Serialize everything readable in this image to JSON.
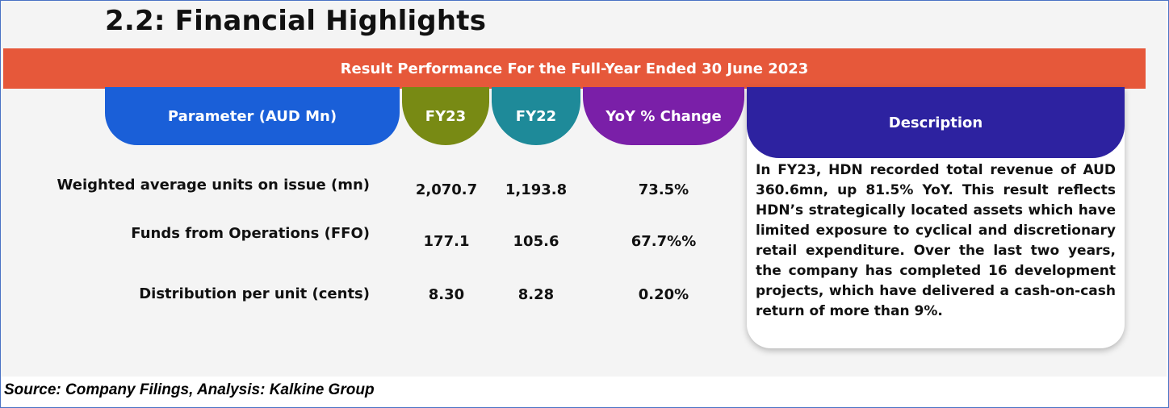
{
  "title": "2.2: Financial Highlights",
  "banner": "Result Performance For the Full-Year Ended 30 June 2023",
  "headers": {
    "parameter": "Parameter (AUD Mn)",
    "fy23": "FY23",
    "fy22": "FY22",
    "yoy": "YoY % Change",
    "description": "Description"
  },
  "rows": [
    {
      "label": "Weighted average units on issue (mn)",
      "fy23": "2,070.7",
      "fy22": "1,193.8",
      "yoy": "73.5%"
    },
    {
      "label": "Funds from Operations (FFO)",
      "fy23": "177.1",
      "fy22": "105.6",
      "yoy": "67.7%%"
    },
    {
      "label": "Distribution per unit (cents)",
      "fy23": "8.30",
      "fy22": "8.28",
      "yoy": "0.20%"
    }
  ],
  "description": "In FY23, HDN recorded total revenue of AUD 360.6mn, up 81.5% YoY. This result reflects HDN’s strategically located assets which have limited exposure to cyclical and discretionary retail expenditure. Over the last two years, the company has completed 16 development projects, which have delivered a cash-on-cash return of more than 9%.",
  "source": "Source: Company Filings, Analysis: Kalkine Group",
  "colors": {
    "banner": "#e6583a",
    "parameter": "#1a5fd8",
    "fy23": "#788a14",
    "fy22": "#1e8a99",
    "yoy": "#7a1fa8",
    "description": "#2d22a0"
  }
}
